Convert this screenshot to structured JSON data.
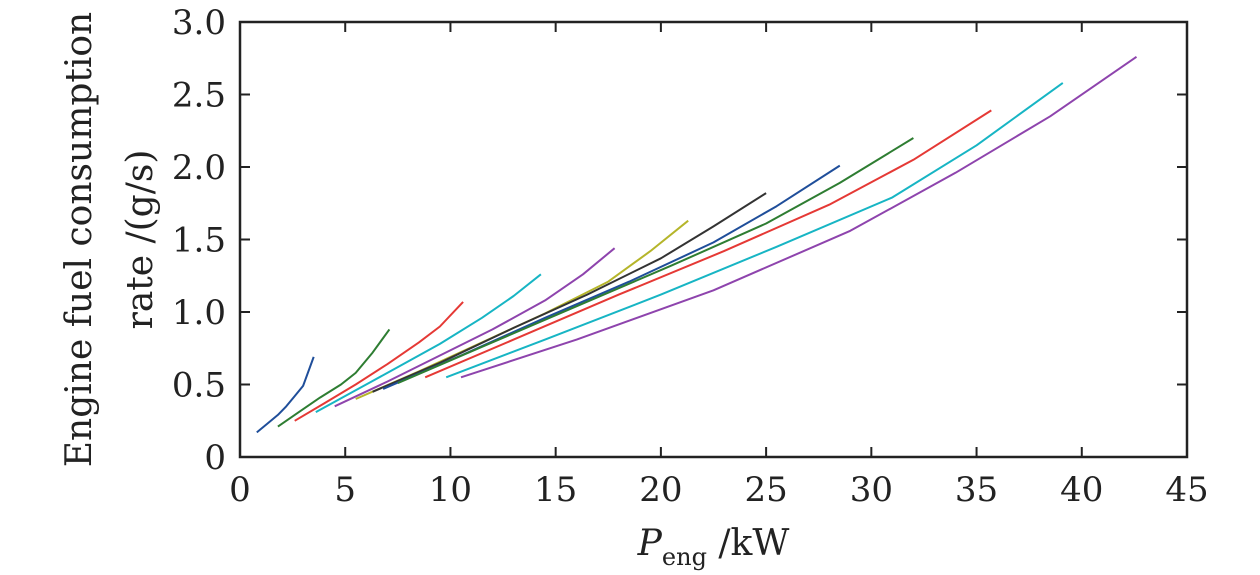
{
  "chart_data": {
    "type": "line",
    "title": "",
    "ylabel_lines": [
      "Engine fuel consumption",
      "rate /(g/s)"
    ],
    "xlabel": {
      "symbol": "P",
      "subscript": "eng",
      "unit": " /kW"
    },
    "xlim": [
      0,
      45
    ],
    "ylim": [
      0,
      3.0
    ],
    "x_ticks": [
      0,
      5,
      10,
      15,
      20,
      25,
      30,
      35,
      40,
      45
    ],
    "x_tick_labels": [
      "0",
      "5",
      "10",
      "15",
      "20",
      "25",
      "30",
      "35",
      "40",
      "45"
    ],
    "y_ticks": [
      0,
      0.5,
      1.0,
      1.5,
      2.0,
      2.5,
      3.0
    ],
    "y_tick_labels": [
      "0",
      "0.5",
      "1.0",
      "1.5",
      "2.0",
      "2.5",
      "3.0"
    ],
    "grid": false,
    "legend": "none",
    "series": [
      {
        "color": "#1f4e9a",
        "x": [
          0.8,
          1.3,
          1.8,
          2.2,
          2.6,
          3.0,
          3.5
        ],
        "y": [
          0.17,
          0.23,
          0.29,
          0.35,
          0.42,
          0.49,
          0.69
        ]
      },
      {
        "color": "#2e7d32",
        "x": [
          1.8,
          2.8,
          3.8,
          4.8,
          5.5,
          6.3,
          7.1
        ],
        "y": [
          0.21,
          0.31,
          0.41,
          0.5,
          0.58,
          0.72,
          0.88
        ]
      },
      {
        "color": "#e53935",
        "x": [
          2.6,
          4.0,
          5.5,
          7.0,
          8.5,
          9.5,
          10.6
        ],
        "y": [
          0.25,
          0.37,
          0.5,
          0.64,
          0.79,
          0.9,
          1.07
        ]
      },
      {
        "color": "#17b5c4",
        "x": [
          3.6,
          5.5,
          7.5,
          9.5,
          11.5,
          13.0,
          14.3
        ],
        "y": [
          0.31,
          0.46,
          0.62,
          0.78,
          0.96,
          1.11,
          1.26
        ]
      },
      {
        "color": "#8e44ad",
        "x": [
          4.5,
          7.0,
          9.5,
          12.0,
          14.5,
          16.3,
          17.8
        ],
        "y": [
          0.35,
          0.52,
          0.7,
          0.88,
          1.08,
          1.26,
          1.44
        ]
      },
      {
        "color": "#b5b52a",
        "x": [
          5.5,
          8.5,
          11.5,
          14.5,
          17.5,
          19.5,
          21.3
        ],
        "y": [
          0.4,
          0.59,
          0.79,
          0.99,
          1.21,
          1.42,
          1.63
        ]
      },
      {
        "color": "#333333",
        "x": [
          6.3,
          9.5,
          13.0,
          16.5,
          20.0,
          22.5,
          25.0
        ],
        "y": [
          0.45,
          0.65,
          0.89,
          1.12,
          1.37,
          1.59,
          1.82
        ]
      },
      {
        "color": "#1f4e9a",
        "x": [
          6.8,
          10.5,
          14.5,
          18.5,
          22.5,
          25.5,
          28.5
        ],
        "y": [
          0.47,
          0.7,
          0.96,
          1.21,
          1.48,
          1.73,
          2.01
        ]
      },
      {
        "color": "#2e7d32",
        "x": [
          7.5,
          11.5,
          16.0,
          20.5,
          25.0,
          28.5,
          32.0
        ],
        "y": [
          0.51,
          0.76,
          1.04,
          1.32,
          1.61,
          1.89,
          2.2
        ]
      },
      {
        "color": "#e53935",
        "x": [
          8.8,
          13.0,
          18.0,
          23.0,
          28.0,
          32.0,
          35.7
        ],
        "y": [
          0.55,
          0.81,
          1.12,
          1.42,
          1.74,
          2.05,
          2.39
        ]
      },
      {
        "color": "#17b5c4",
        "x": [
          9.8,
          14.5,
          20.0,
          25.5,
          31.0,
          35.0,
          39.1
        ],
        "y": [
          0.55,
          0.81,
          1.12,
          1.45,
          1.79,
          2.15,
          2.58
        ]
      },
      {
        "color": "#8e44ad",
        "x": [
          10.5,
          16.0,
          22.5,
          29.0,
          34.0,
          38.5,
          42.6
        ],
        "y": [
          0.55,
          0.81,
          1.15,
          1.56,
          1.96,
          2.35,
          2.76
        ]
      }
    ]
  }
}
